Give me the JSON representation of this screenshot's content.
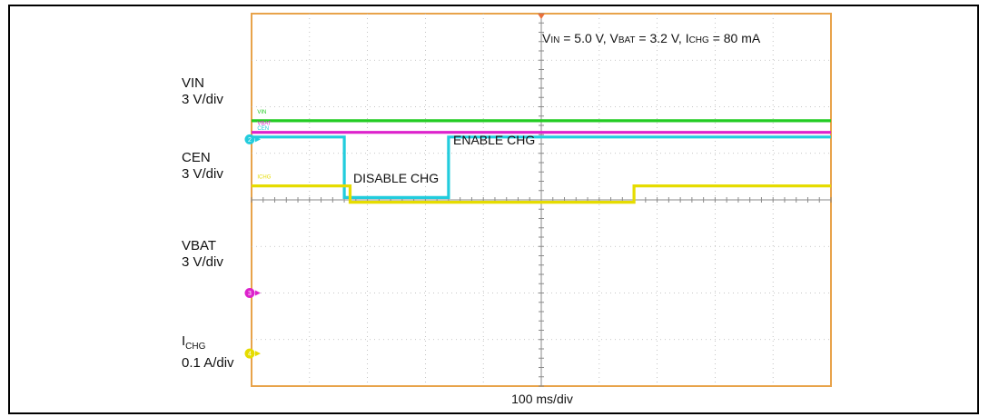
{
  "chart_data": {
    "type": "line",
    "title": "VIN = 5.0 V, VBAT = 3.2 V, ICHG = 80 mA",
    "title_parts": {
      "vin_main": "V",
      "vin_sub": "IN",
      "vin_val": " = 5.0 V, ",
      "vbat_main": "V",
      "vbat_sub": "BAT",
      "vbat_val": " = 3.2 V, ",
      "ichg_main": "I",
      "ichg_sub": "CHG",
      "ichg_val": " = 80 mA"
    },
    "xlabel": "100 ms/div",
    "x_divisions": 10,
    "y_divisions": 8,
    "grid": true,
    "annotations": [
      {
        "text": "ENABLE CHG",
        "anchor": "CEN rising edge, above trace"
      },
      {
        "text": "DISABLE CHG",
        "anchor": "CEN low segment"
      }
    ],
    "series": [
      {
        "name": "VIN",
        "channel": "1",
        "color": "#22cc22",
        "scale": "3 V/div",
        "marker_div": 4.6,
        "x": [
          0,
          10
        ],
        "y": [
          1.7,
          1.7
        ]
      },
      {
        "name": "CEN",
        "channel": "2",
        "color": "#22ccdd",
        "scale": "3 V/div",
        "marker_div": 1.3,
        "x": [
          0,
          1.6,
          1.6,
          3.4,
          3.4,
          10
        ],
        "y": [
          1.35,
          1.35,
          0.05,
          0.05,
          1.35,
          1.35
        ]
      },
      {
        "name": "VBAT",
        "channel": "3",
        "color": "#dd22cc",
        "scale": "3 V/div",
        "marker_div": -2.0,
        "x": [
          0,
          10
        ],
        "y": [
          1.45,
          1.45
        ]
      },
      {
        "name": "ICHG",
        "channel": "4",
        "color": "#e6dc00",
        "scale": "0.1 A/div",
        "marker_div": -3.3,
        "x": [
          0,
          1.7,
          1.7,
          6.6,
          6.6,
          10
        ],
        "y": [
          0.3,
          0.3,
          -0.05,
          -0.05,
          0.3,
          0.3
        ]
      }
    ]
  },
  "labels": {
    "vin": {
      "name": "VIN",
      "scale": "3 V/div"
    },
    "cen": {
      "name": "CEN",
      "scale": "3 V/div"
    },
    "vbat": {
      "name": "VBAT",
      "scale": "3 V/div"
    },
    "ichg": {
      "name_main": "I",
      "name_sub": "CHG",
      "scale": "0.1 A/div"
    }
  }
}
